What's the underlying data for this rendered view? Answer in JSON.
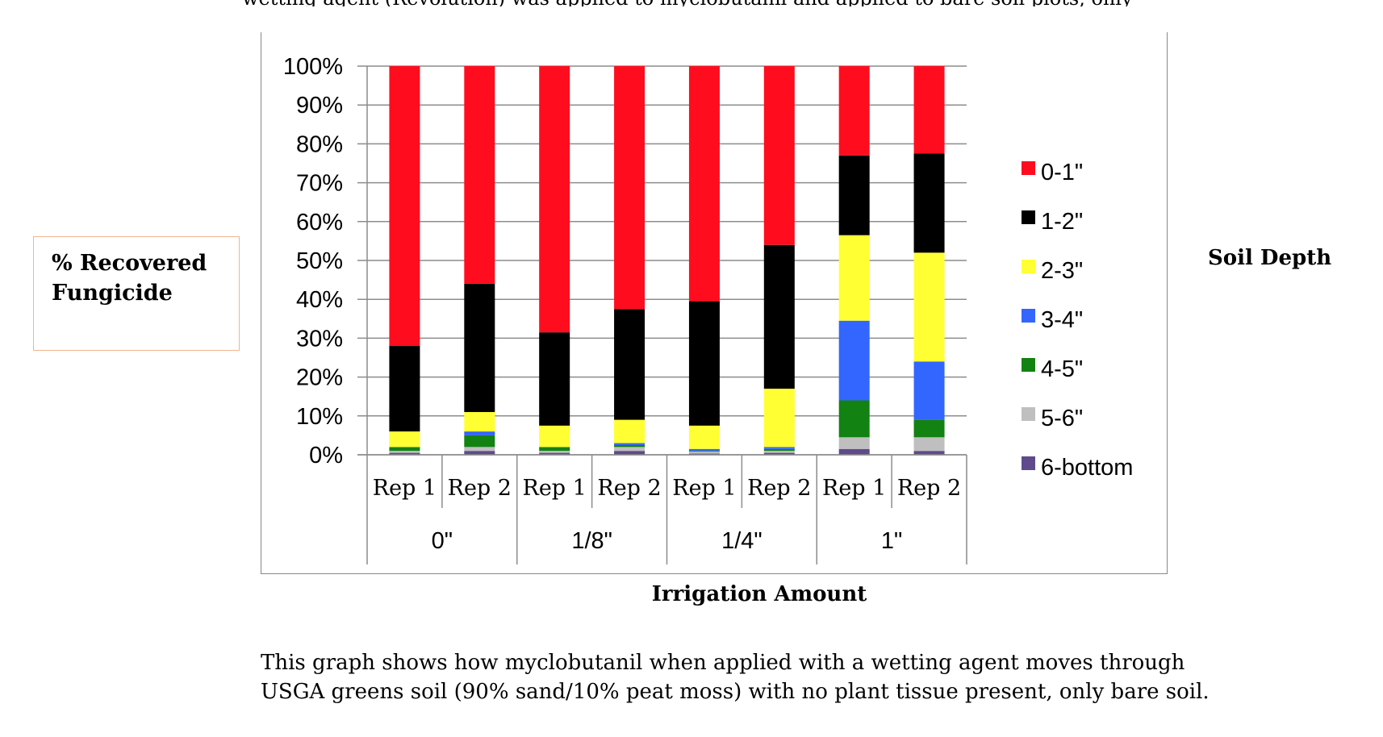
{
  "page": {
    "top_cut_text": "wetting agent (Revolution) was applied to myclobutanil and applied to bare soil plots, only",
    "caption_lines": [
      "This graph shows how myclobutanil when applied with a wetting agent moves through",
      "USGA greens soil (90% sand/10% peat moss) with no plant tissue present, only bare soil."
    ]
  },
  "chart_data": {
    "type": "bar",
    "stacked": true,
    "title": "",
    "ylabel": "% Recovered Fungicide",
    "xlabel": "Irrigation Amount",
    "legend_title": "Soil Depth",
    "legend_position": "right",
    "ylim": [
      0,
      100
    ],
    "yticks": [
      "0%",
      "10%",
      "20%",
      "30%",
      "40%",
      "50%",
      "60%",
      "70%",
      "80%",
      "90%",
      "100%"
    ],
    "grid": true,
    "groups": [
      "0\"",
      "1/8\"",
      "1/4\"",
      "1\""
    ],
    "categories": [
      "Rep 1",
      "Rep 2",
      "Rep 1",
      "Rep 2",
      "Rep 1",
      "Rep 2",
      "Rep 1",
      "Rep 2"
    ],
    "colors": {
      "0-1\"": "#ff0d1e",
      "1-2\"": "#000000",
      "2-3\"": "#ffff33",
      "3-4\"": "#3366ff",
      "4-5\"": "#128212",
      "5-6\"": "#bfbfbf",
      "6-bottom": "#5f4b8b"
    },
    "series": [
      {
        "name": "6-bottom",
        "values": [
          0.5,
          1.0,
          0.5,
          1.0,
          0.3,
          0.5,
          1.5,
          1.0
        ]
      },
      {
        "name": "5-6\"",
        "values": [
          0.5,
          1.0,
          0.5,
          1.0,
          0.5,
          0.5,
          3.0,
          3.5
        ]
      },
      {
        "name": "4-5\"",
        "values": [
          1.0,
          3.0,
          1.0,
          0.5,
          0.2,
          0.5,
          9.5,
          4.5
        ]
      },
      {
        "name": "3-4\"",
        "values": [
          0.0,
          1.0,
          0.0,
          0.5,
          0.5,
          0.5,
          20.5,
          15.0
        ]
      },
      {
        "name": "2-3\"",
        "values": [
          4.0,
          5.0,
          5.5,
          6.0,
          6.0,
          15.0,
          22.0,
          28.0
        ]
      },
      {
        "name": "1-2\"",
        "values": [
          22.0,
          33.0,
          24.0,
          28.5,
          32.0,
          37.0,
          20.5,
          25.5
        ]
      },
      {
        "name": "0-1\"",
        "values": [
          72.0,
          56.0,
          68.5,
          62.5,
          60.5,
          46.0,
          23.0,
          22.5
        ]
      }
    ]
  }
}
